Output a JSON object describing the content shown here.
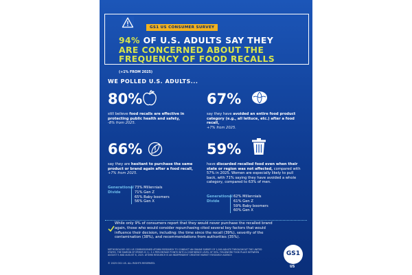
{
  "header": {
    "survey_tag": "GS1 US CONSUMER SURVEY",
    "headline_lines": [
      {
        "highlight": "94%",
        "text": " OF U.S. ADULTS SAY THEY"
      },
      {
        "highlight": "",
        "text": "ARE CONCERNED ABOUT THE"
      },
      {
        "highlight": "",
        "text": "FREQUENCY OF FOOD RECALLS"
      }
    ],
    "headline_note": "(+1% FROM 2025)",
    "icon": "warning-triangle-icon"
  },
  "section_title": "WE POLLED U.S. ADULTS...",
  "stats": [
    {
      "value": "80%",
      "icon": "apple-icon",
      "text_before": "still believe ",
      "text_bold": "food recalls are effective in protecting public health and safety,",
      "text_after": "",
      "note": "-8% from 2025."
    },
    {
      "value": "67%",
      "icon": "lettuce-icon",
      "text_before": "say they have ",
      "text_bold": "avoided an entire food product category (e.g., all lettuce, etc.) after a food recall,",
      "text_after": "",
      "note": "+7% from 2025."
    },
    {
      "value": "66%",
      "icon": "hesitant-leaf-icon",
      "text_before": "say they are ",
      "text_bold": "hesitant to purchase the same product or brand again after a food recall,",
      "text_after": "",
      "note": "+7% from 2025."
    },
    {
      "value": "59%",
      "icon": "trash-can-icon",
      "text_before": "have ",
      "text_bold": "discarded recalled food even when their state or region was not affected,",
      "text_after": " compared with 57% in 2025. Women are especially likely to pull back, with 71% saying they have avoided a whole category, compared to 63% of men.",
      "note": ""
    }
  ],
  "generational_divide": {
    "label_line1": "Generational",
    "label_line2": "Divide",
    "left": [
      "73% Millennials",
      "71% Gen Z",
      "65% Baby boomers",
      "56% Gen X"
    ],
    "right": [
      "62% Millennials",
      "61% Gen Z",
      "59% Baby boomers",
      "60% Gen X"
    ]
  },
  "bottom_text": "While only 9% of consumers report that they would never purchase the recalled brand again, those who would consider repurchasing cited several key factors that would influence their decision, including: the time since the recall (39%), severity of the contamination (38%), and recommendations from authorities (35%).",
  "methodology": "METHODOLOGY: GS1 US COMMISSIONED ATOMIK RESEARCH TO CONDUCT AN ONLINE SURVEY OF 1,000 ADULTS THROUGHOUT THE UNITED STATES. THE MARGIN OF ERROR IS +/- 3.1 PERCENTAGE POINTS WITH A CONFIDENCE LEVEL OF 95%. FIELDWORK TOOK PLACE BETWEEN AUGUST 5 AND AUGUST 8, 2025. ATOMIK RESEARCH IS AN INDEPENDENT CREATIVE MARKET RESEARCH AGENCY.",
  "copyright": "© 2025 GS1 US. ALL RIGHTS RESERVED.",
  "logo": {
    "text": "GS1",
    "region": "US"
  },
  "colors": {
    "background": "#1c56b8",
    "accent_yellow": "#d8e44c",
    "tag_yellow": "#f2b21f",
    "divide_blue": "#6fbbe9"
  }
}
